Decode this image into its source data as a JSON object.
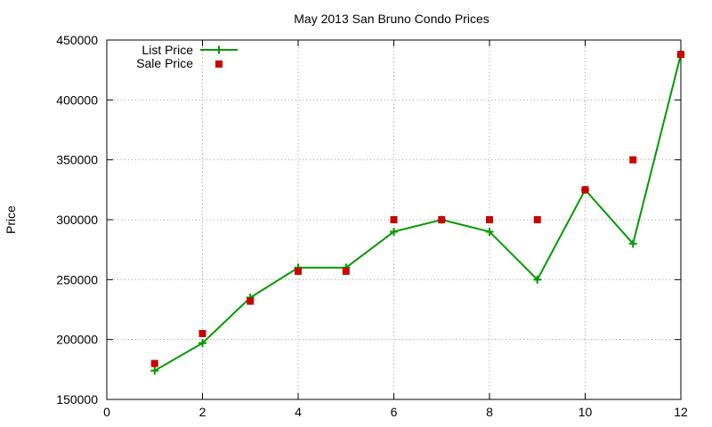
{
  "chart_data": {
    "type": "line",
    "title": "May 2013 San Bruno Condo Prices",
    "xlabel": "",
    "ylabel": "Price",
    "xlim": [
      0,
      12
    ],
    "ylim": [
      150000,
      450000
    ],
    "xticks": [
      "0",
      "2",
      "4",
      "6",
      "8",
      "10",
      "12"
    ],
    "xtick_values": [
      0,
      2,
      4,
      6,
      8,
      10,
      12
    ],
    "yticks": [
      "150000",
      "200000",
      "250000",
      "300000",
      "350000",
      "400000",
      "450000"
    ],
    "ytick_values": [
      150000,
      200000,
      250000,
      300000,
      350000,
      400000,
      450000
    ],
    "grid": true,
    "legend_position": "top-left",
    "series": [
      {
        "name": "List Price",
        "kind": "line-points",
        "marker": "plus",
        "color": "#009900",
        "x": [
          1,
          2,
          3,
          4,
          5,
          6,
          7,
          8,
          9,
          10,
          11,
          12
        ],
        "y": [
          174000,
          197000,
          235000,
          260000,
          260000,
          290000,
          300000,
          290000,
          250000,
          325000,
          280000,
          438000
        ]
      },
      {
        "name": "Sale Price",
        "kind": "points",
        "marker": "square",
        "color": "#cc0000",
        "x": [
          1,
          2,
          3,
          4,
          5,
          6,
          7,
          8,
          9,
          10,
          11,
          12
        ],
        "y": [
          180000,
          205000,
          232000,
          257000,
          257000,
          300000,
          300000,
          300000,
          300000,
          325000,
          350000,
          438000
        ]
      }
    ]
  }
}
